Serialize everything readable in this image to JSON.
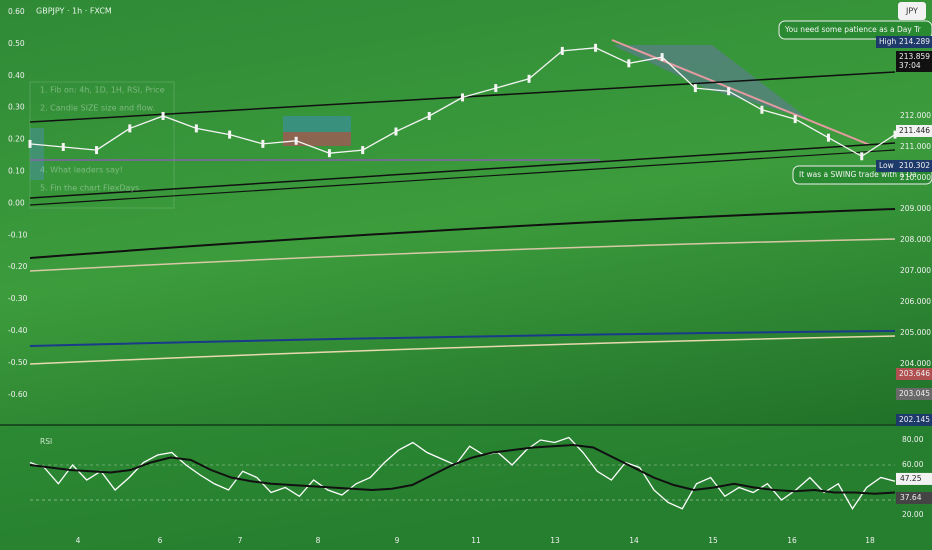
{
  "header": {
    "symbol": "GBPJPY · 1h · FXCM",
    "currency": "JPY"
  },
  "left_axis": [
    "0.60",
    "0.50",
    "0.40",
    "0.30",
    "0.20",
    "0.10",
    "0.00",
    "-0.10",
    "-0.20",
    "-0.30",
    "-0.40",
    "-0.50",
    "-0.60"
  ],
  "right_axis": [
    "212.000",
    "211.000",
    "210.000",
    "209.000",
    "208.000",
    "207.000",
    "206.000",
    "205.000",
    "204.000"
  ],
  "price_labels": [
    {
      "name": "High",
      "value": "214.289"
    },
    {
      "name": "",
      "value": "213.859"
    },
    {
      "name": "",
      "value": "37:04"
    },
    {
      "name": "",
      "value": "211.446"
    },
    {
      "name": "Low",
      "value": "210.302"
    },
    {
      "name": "",
      "value": "203.646"
    },
    {
      "name": "",
      "value": "203.045"
    },
    {
      "name": "",
      "value": "202.145"
    }
  ],
  "notes": [
    "You need some patience as a Day Tr",
    "It was a SWING trade with a Da"
  ],
  "overlay_list": [
    "1. Fib on: 4h, 1D, 1H, RSI, Price",
    "2. Candle SIZE size and flow.",
    "4. What leaders say!",
    "5. Fin the chart FlexDays"
  ],
  "x_axis": [
    "4",
    "6",
    "7",
    "8",
    "9",
    "11",
    "13",
    "14",
    "15",
    "16",
    "18"
  ],
  "price_series": [
    211.1,
    211.0,
    210.9,
    211.6,
    212.0,
    211.6,
    211.4,
    211.1,
    211.2,
    210.8,
    210.9,
    211.5,
    212.0,
    212.6,
    212.9,
    213.2,
    214.1,
    214.2,
    213.7,
    213.9,
    212.9,
    212.8,
    212.2,
    211.9,
    211.3,
    210.7,
    211.4
  ],
  "rsi": {
    "title": "RSI",
    "ticks": [
      "80.00",
      "60.00",
      "20.00"
    ],
    "labels": [
      "47.25",
      "37.64"
    ],
    "series": [
      62,
      58,
      45,
      60,
      48,
      55,
      40,
      50,
      62,
      68,
      70,
      60,
      52,
      45,
      40,
      55,
      50,
      38,
      42,
      35,
      48,
      40,
      36,
      45,
      50,
      62,
      72,
      78,
      70,
      65,
      60,
      75,
      68,
      70,
      60,
      72,
      80,
      78,
      82,
      70,
      55,
      48,
      62,
      58,
      40,
      30,
      25,
      45,
      50,
      35,
      42,
      38,
      45,
      32,
      40,
      50,
      38,
      45,
      25,
      42,
      50,
      47
    ],
    "ma": [
      60,
      58,
      56,
      55,
      54,
      56,
      62,
      66,
      64,
      56,
      50,
      47,
      45,
      44,
      43,
      42,
      41,
      40,
      41,
      44,
      52,
      60,
      66,
      70,
      72,
      74,
      75,
      76,
      74,
      66,
      58,
      50,
      44,
      40,
      42,
      45,
      42,
      40,
      39,
      40,
      38,
      38,
      37,
      38
    ]
  }
}
